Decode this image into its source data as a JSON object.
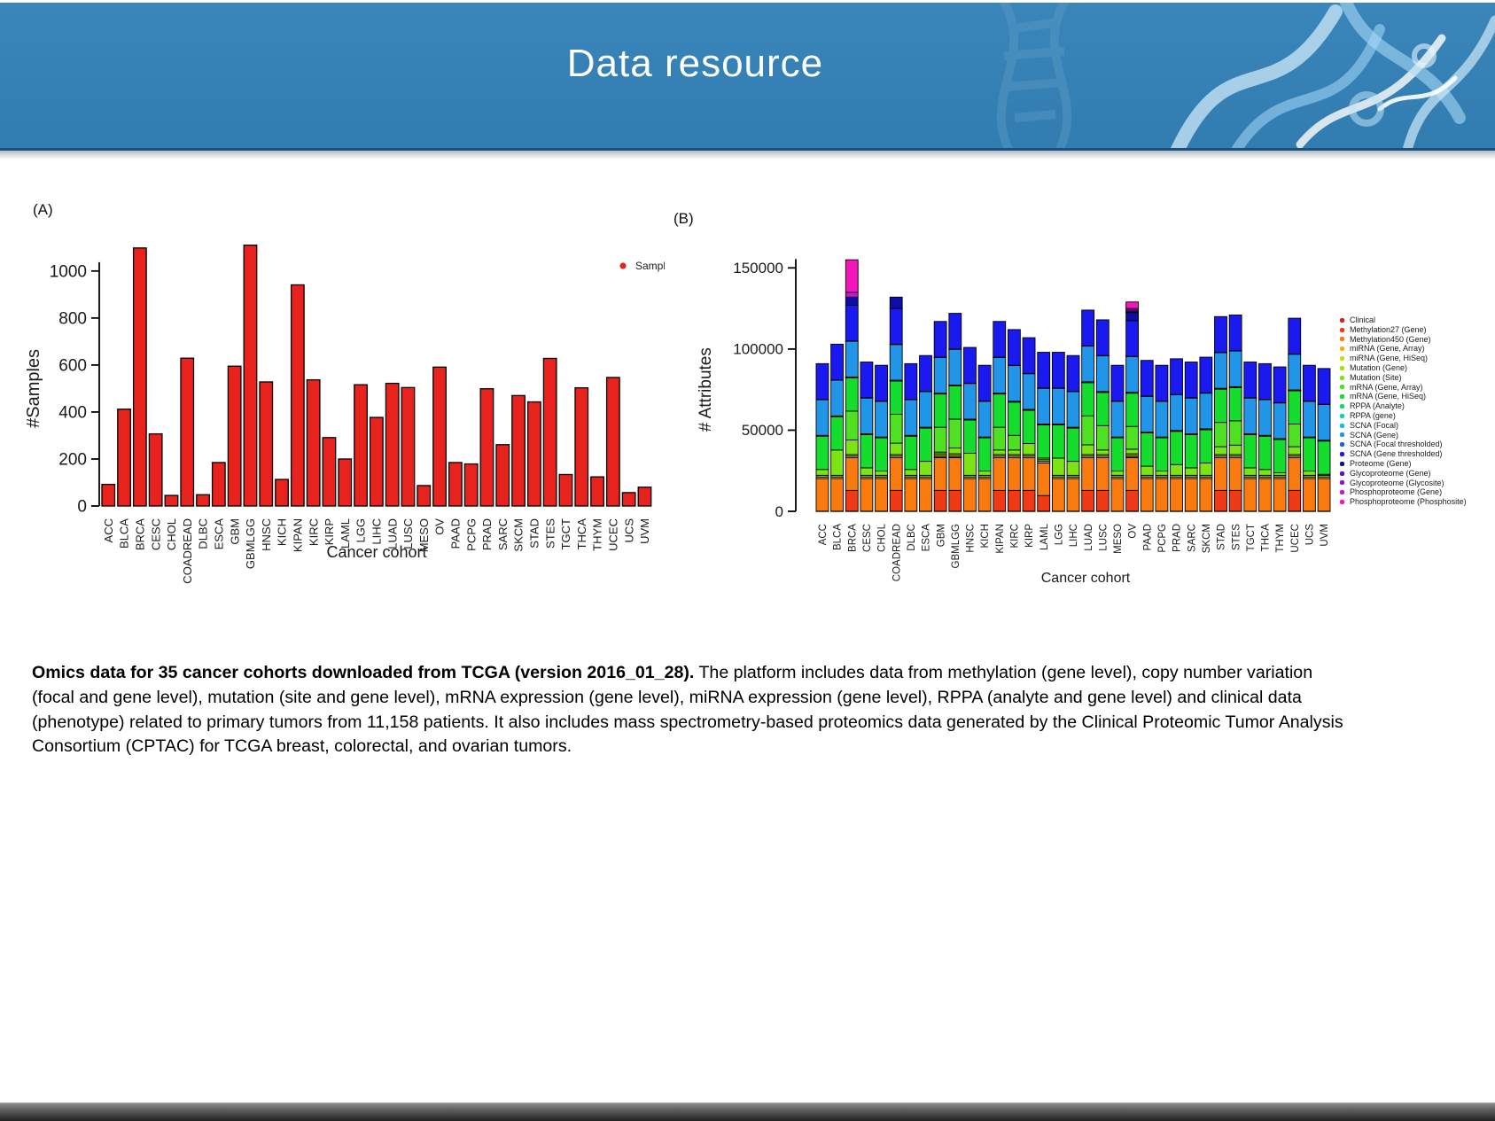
{
  "header": {
    "title": "Data resource"
  },
  "panels": {
    "a_label": "(A)",
    "b_label": "(B)"
  },
  "caption": {
    "bold": "Omics data for 35 cancer cohorts downloaded from TCGA (version 2016_01_28).",
    "text": " The platform includes data from methylation (gene level), copy number variation (focal and gene level), mutation (site and gene level), mRNA expression (gene level), miRNA expression (gene level), RPPA (analyte and gene level) and clinical data (phenotype) related to primary tumors from 11,158 patients. It also includes mass spectrometry-based proteomics data generated by the Clinical Proteomic Tumor Analysis Consortium (CPTAC) for TCGA breast, colorectal, and ovarian tumors."
  },
  "chart_data": [
    {
      "id": "samples-chart",
      "type": "bar",
      "title": "",
      "ylabel": "#Samples",
      "xlabel": "Cancer cohort",
      "ylim": [
        0,
        1120
      ],
      "yticks": [
        0,
        200,
        400,
        600,
        800,
        1000
      ],
      "grid": false,
      "legend_position": "top-right-inside",
      "legend": [
        {
          "label": "Samples",
          "color": "#e8231d"
        }
      ],
      "bar_color": "#e8231d",
      "categories": [
        "ACC",
        "BLCA",
        "BRCA",
        "CESC",
        "CHOL",
        "COADREAD",
        "DLBC",
        "ESCA",
        "GBM",
        "GBMLGG",
        "HNSC",
        "KICH",
        "KIPAN",
        "KIRC",
        "KIRP",
        "LAML",
        "LGG",
        "LIHC",
        "LUAD",
        "LUSC",
        "MESO",
        "OV",
        "PAAD",
        "PCPG",
        "PRAD",
        "SARC",
        "SKCM",
        "STAD",
        "STES",
        "TGCT",
        "THCA",
        "THYM",
        "UCEC",
        "UCS",
        "UVM"
      ],
      "values": [
        92,
        412,
        1098,
        307,
        45,
        629,
        48,
        185,
        595,
        1110,
        528,
        113,
        941,
        537,
        291,
        200,
        516,
        377,
        522,
        504,
        87,
        591,
        185,
        179,
        499,
        261,
        470,
        443,
        628,
        134,
        503,
        124,
        547,
        57,
        80
      ]
    },
    {
      "id": "attributes-chart",
      "type": "stacked-bar",
      "title": "",
      "ylabel": "# Attributes",
      "xlabel": "Cancer cohort",
      "ylim": [
        0,
        160000
      ],
      "yticks": [
        0,
        50000,
        100000,
        150000
      ],
      "grid": false,
      "legend_position": "right",
      "categories": [
        "ACC",
        "BLCA",
        "BRCA",
        "CESC",
        "CHOL",
        "COADREAD",
        "DLBC",
        "ESCA",
        "GBM",
        "GBMLGG",
        "HNSC",
        "KICH",
        "KIPAN",
        "KIRC",
        "KIRP",
        "LAML",
        "LGG",
        "LIHC",
        "LUAD",
        "LUSC",
        "MESO",
        "OV",
        "PAAD",
        "PCPG",
        "PRAD",
        "SARC",
        "SKCM",
        "STAD",
        "STES",
        "TGCT",
        "THCA",
        "THYM",
        "UCEC",
        "UCS",
        "UVM"
      ],
      "series": [
        {
          "name": "Clinical",
          "color": "#e31a1c",
          "values": [
            100,
            100,
            100,
            100,
            100,
            100,
            100,
            100,
            100,
            100,
            100,
            100,
            100,
            100,
            100,
            100,
            100,
            100,
            100,
            100,
            100,
            100,
            100,
            100,
            100,
            100,
            100,
            100,
            100,
            100,
            100,
            100,
            100,
            100,
            100
          ]
        },
        {
          "name": "Methylation27 (Gene)",
          "color": "#f03917",
          "values": [
            0,
            0,
            12800,
            0,
            0,
            12800,
            0,
            0,
            12800,
            12800,
            0,
            0,
            12800,
            12800,
            12800,
            9600,
            0,
            0,
            12800,
            12800,
            0,
            12800,
            0,
            0,
            0,
            0,
            0,
            12800,
            12800,
            0,
            0,
            0,
            12800,
            0,
            0
          ]
        },
        {
          "name": "Methylation450 (Gene)",
          "color": "#f97b0f",
          "values": [
            20100,
            20100,
            20100,
            20100,
            20100,
            20100,
            20100,
            20100,
            20100,
            20100,
            20100,
            20100,
            20100,
            20100,
            20100,
            20100,
            20100,
            20100,
            20100,
            20100,
            20100,
            20100,
            20100,
            20100,
            20100,
            20100,
            20100,
            20100,
            20100,
            20100,
            20100,
            20100,
            20100,
            20100,
            20100
          ]
        },
        {
          "name": "miRNA (Gene, Array)",
          "color": "#fcae05",
          "values": [
            0,
            0,
            0,
            0,
            0,
            0,
            0,
            0,
            500,
            500,
            0,
            0,
            0,
            0,
            0,
            0,
            0,
            0,
            0,
            0,
            0,
            500,
            0,
            0,
            0,
            0,
            0,
            0,
            0,
            0,
            0,
            0,
            0,
            0,
            0
          ]
        },
        {
          "name": "miRNA (Gene, HiSeq)",
          "color": "#d3d904",
          "values": [
            1000,
            1000,
            1000,
            1000,
            1000,
            1000,
            1000,
            1000,
            1000,
            1000,
            1000,
            1000,
            1000,
            1000,
            1000,
            1000,
            1000,
            1000,
            1000,
            1000,
            1000,
            1000,
            1000,
            1000,
            1000,
            1000,
            1000,
            1000,
            1000,
            1000,
            1000,
            1000,
            1000,
            1000,
            1000
          ]
        },
        {
          "name": "Mutation (Gene)",
          "color": "#a8e007",
          "values": [
            1000,
            1000,
            1000,
            1000,
            1000,
            1000,
            1000,
            1000,
            1000,
            1000,
            1000,
            1000,
            1000,
            1000,
            1000,
            1000,
            1000,
            1000,
            1000,
            1000,
            1000,
            1000,
            1000,
            1000,
            1000,
            1000,
            1000,
            1000,
            1000,
            1000,
            1000,
            1000,
            1000,
            1000,
            1000
          ]
        },
        {
          "name": "Mutation (Site)",
          "color": "#7ce314",
          "values": [
            3600,
            15600,
            9000,
            4600,
            2600,
            7000,
            3600,
            8600,
            1000,
            3500,
            13600,
            2600,
            2800,
            2800,
            6800,
            1000,
            10600,
            8600,
            6000,
            2800,
            2600,
            2800,
            5600,
            2600,
            6600,
            4600,
            7600,
            4800,
            5800,
            4600,
            3600,
            1600,
            4800,
            2600,
            600
          ]
        },
        {
          "name": "mRNA (Gene, Array)",
          "color": "#4fe022",
          "values": [
            0,
            0,
            17800,
            0,
            0,
            17800,
            0,
            0,
            15300,
            17800,
            0,
            0,
            14000,
            9000,
            0,
            0,
            0,
            0,
            17800,
            15000,
            0,
            14000,
            0,
            0,
            0,
            0,
            0,
            15000,
            15000,
            0,
            0,
            0,
            14000,
            0,
            0
          ]
        },
        {
          "name": "mRNA (Gene, HiSeq)",
          "color": "#15dd2e",
          "values": [
            20500,
            20500,
            20500,
            20500,
            20500,
            20500,
            20500,
            20500,
            20500,
            20500,
            20500,
            20500,
            20500,
            20500,
            20500,
            20500,
            20500,
            20500,
            20500,
            20500,
            20500,
            20500,
            20500,
            20500,
            20500,
            20500,
            20500,
            20500,
            20500,
            20500,
            20500,
            20500,
            20500,
            20500,
            20500
          ]
        },
        {
          "name": "RPPA (Analyte)",
          "color": "#0fd968",
          "values": [
            200,
            200,
            200,
            200,
            200,
            200,
            200,
            200,
            200,
            200,
            200,
            200,
            200,
            200,
            200,
            200,
            200,
            200,
            200,
            200,
            200,
            200,
            200,
            200,
            200,
            200,
            200,
            200,
            200,
            200,
            200,
            200,
            200,
            200,
            200
          ]
        },
        {
          "name": "RPPA (gene)",
          "color": "#0cd5a0",
          "values": [
            100,
            100,
            100,
            100,
            100,
            100,
            100,
            100,
            100,
            100,
            100,
            100,
            100,
            100,
            100,
            100,
            100,
            100,
            100,
            100,
            100,
            100,
            100,
            100,
            100,
            100,
            100,
            100,
            100,
            100,
            100,
            100,
            100,
            100,
            100
          ]
        },
        {
          "name": "SCNA (Focal)",
          "color": "#0ac4d5",
          "values": [
            200,
            200,
            200,
            200,
            200,
            200,
            200,
            200,
            200,
            200,
            200,
            200,
            200,
            200,
            200,
            200,
            200,
            200,
            200,
            200,
            200,
            200,
            200,
            200,
            200,
            200,
            200,
            200,
            200,
            200,
            200,
            200,
            200,
            200,
            200
          ]
        },
        {
          "name": "SCNA (Gene)",
          "color": "#2196e8",
          "values": [
            22000,
            22000,
            22000,
            22000,
            22000,
            22000,
            22000,
            22000,
            22000,
            22000,
            22000,
            22000,
            22000,
            22000,
            22000,
            22000,
            22000,
            22000,
            22000,
            22000,
            22000,
            22000,
            22000,
            22000,
            22000,
            22000,
            22000,
            22000,
            22000,
            22000,
            22000,
            22000,
            22000,
            22000,
            22000
          ]
        },
        {
          "name": "SCNA (Focal thresholded)",
          "color": "#1b60f0",
          "values": [
            200,
            200,
            200,
            200,
            200,
            200,
            200,
            200,
            200,
            200,
            200,
            200,
            200,
            200,
            200,
            200,
            200,
            200,
            200,
            200,
            200,
            200,
            200,
            200,
            200,
            200,
            200,
            200,
            200,
            200,
            200,
            200,
            200,
            200,
            200
          ]
        },
        {
          "name": "SCNA (Gene thresholded)",
          "color": "#1a1af0",
          "values": [
            22000,
            22000,
            22000,
            22000,
            22000,
            22000,
            22000,
            22000,
            22000,
            22000,
            22000,
            22000,
            22000,
            22000,
            22000,
            22000,
            22000,
            22000,
            22000,
            22000,
            22000,
            22000,
            22000,
            22000,
            22000,
            22000,
            22000,
            22000,
            22000,
            22000,
            22000,
            22000,
            22000,
            22000,
            22000
          ]
        },
        {
          "name": "Proteome (Gene)",
          "color": "#0d0da8",
          "values": [
            0,
            0,
            5000,
            0,
            0,
            7000,
            0,
            0,
            0,
            0,
            0,
            0,
            0,
            0,
            0,
            0,
            0,
            0,
            0,
            0,
            0,
            5000,
            0,
            0,
            0,
            0,
            0,
            0,
            0,
            0,
            0,
            0,
            0,
            0,
            0
          ]
        },
        {
          "name": "Glycoproteome (Gene)",
          "color": "#5a0fc8",
          "values": [
            0,
            0,
            0,
            0,
            0,
            0,
            0,
            0,
            0,
            0,
            0,
            0,
            0,
            0,
            0,
            0,
            0,
            0,
            0,
            0,
            0,
            500,
            0,
            0,
            0,
            0,
            0,
            0,
            0,
            0,
            0,
            0,
            0,
            0,
            0
          ]
        },
        {
          "name": "Glycoproteome (Glycosite)",
          "color": "#8d12d6",
          "values": [
            0,
            0,
            0,
            0,
            0,
            0,
            0,
            0,
            0,
            0,
            0,
            0,
            0,
            0,
            0,
            0,
            0,
            0,
            0,
            0,
            0,
            1000,
            0,
            0,
            0,
            0,
            0,
            0,
            0,
            0,
            0,
            0,
            0,
            0,
            0
          ]
        },
        {
          "name": "Phosphoproteome (Gene)",
          "color": "#c715d9",
          "values": [
            0,
            0,
            3000,
            0,
            0,
            0,
            0,
            0,
            0,
            0,
            0,
            0,
            0,
            0,
            0,
            0,
            0,
            0,
            0,
            0,
            0,
            1000,
            0,
            0,
            0,
            0,
            0,
            0,
            0,
            0,
            0,
            0,
            0,
            0,
            0
          ]
        },
        {
          "name": "Phosphoproteome (Phosphosite)",
          "color": "#f316bb",
          "values": [
            0,
            0,
            20000,
            0,
            0,
            0,
            0,
            0,
            0,
            0,
            0,
            0,
            0,
            0,
            0,
            0,
            0,
            0,
            0,
            0,
            0,
            4000,
            0,
            0,
            0,
            0,
            0,
            0,
            0,
            0,
            0,
            0,
            0,
            0,
            0
          ]
        }
      ]
    }
  ],
  "colors": {
    "banner": "#3580b4",
    "banner_edge": "#1d4f78",
    "bar_red": "#e8231d",
    "footer_dark": "#222222"
  }
}
